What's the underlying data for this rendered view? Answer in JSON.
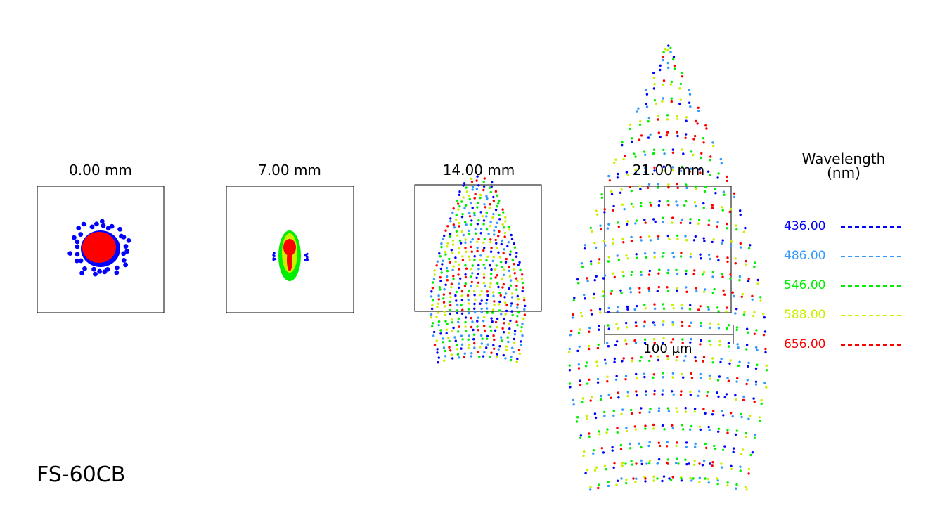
{
  "lens_name": "FS-60CB",
  "field_labels": [
    "0.00 mm",
    "7.00 mm",
    "14.00 mm",
    "21.00 mm"
  ],
  "scale_bar": "100 µm",
  "legend": {
    "title_line1": "Wavelength",
    "title_line2": "(nm)",
    "items": [
      {
        "label": "436.00",
        "color": "#0000ff"
      },
      {
        "label": "486.00",
        "color": "#3399ff"
      },
      {
        "label": "546.00",
        "color": "#00ee00"
      },
      {
        "label": "588.00",
        "color": "#ccee00"
      },
      {
        "label": "656.00",
        "color": "#ff0000"
      }
    ]
  }
}
